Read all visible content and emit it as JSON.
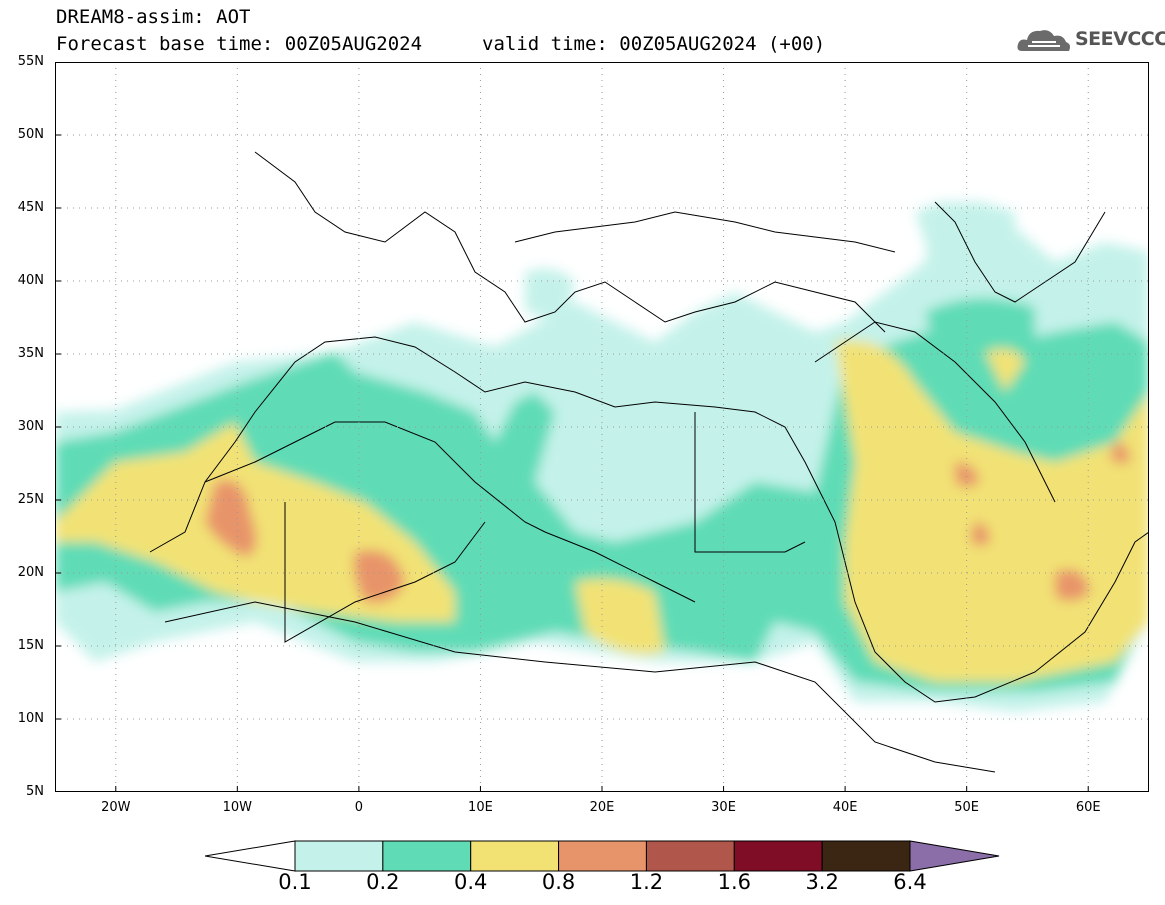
{
  "title": {
    "line1": "DREAM8-assim: AOT",
    "line2": "Forecast base time: 00Z05AUG2024",
    "valid": "valid time: 00Z05AUG2024 (+00)"
  },
  "logo": {
    "text": "SEEVCCC",
    "icon": "cloud-icon"
  },
  "map": {
    "lon_range": [
      -25,
      65
    ],
    "lat_range": [
      5,
      55
    ],
    "grid": "dotted",
    "lat_labels": [
      "55N",
      "50N",
      "45N",
      "40N",
      "35N",
      "30N",
      "25N",
      "20N",
      "15N",
      "10N",
      "5N"
    ],
    "lon_labels": [
      "20W",
      "10W",
      "0",
      "10E",
      "20E",
      "30E",
      "40E",
      "50E",
      "60E"
    ],
    "lat_values": [
      55,
      50,
      45,
      40,
      35,
      30,
      25,
      20,
      15,
      10,
      5
    ],
    "lon_values": [
      -20,
      -10,
      0,
      10,
      20,
      30,
      40,
      50,
      60
    ]
  },
  "colorbar": {
    "labels": [
      "0.1",
      "0.2",
      "0.4",
      "0.8",
      "1.2",
      "1.6",
      "3.2",
      "6.4"
    ],
    "colors": [
      "#c4f2ea",
      "#5fdcb6",
      "#f2e274",
      "#e8946a",
      "#b0564a",
      "#800d26",
      "#3b2613",
      "#8b6da8"
    ]
  }
}
